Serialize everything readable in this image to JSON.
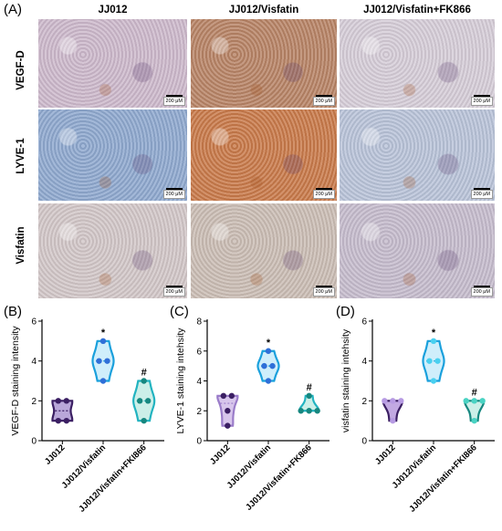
{
  "figure": {
    "panel_a_label": "(A)",
    "column_headers": [
      "JJ012",
      "JJ012/Visfatin",
      "JJ012/Visfatin+FK866"
    ],
    "row_headers": [
      "VEGF-D",
      "LYVE-1",
      "Visfatin"
    ],
    "scale_bar_label": "200 μM",
    "tile_colors": [
      [
        "#cdb9cc",
        "#b88466",
        "#d6cdd8"
      ],
      [
        "#8fa9cf",
        "#c97a4a",
        "#b9c3d9"
      ],
      [
        "#d2c7c8",
        "#cbbdb4",
        "#c6bccd"
      ]
    ]
  },
  "chart_data": [
    {
      "panel_label": "(B)",
      "type": "violin",
      "ylabel": "VEGF-D staining intensity",
      "ylim": [
        0,
        6
      ],
      "yticks": [
        0,
        2,
        4,
        6
      ],
      "categories": [
        "JJ012",
        "JJ012/Visfatin",
        "JJ012/Visfatin+FKI866"
      ],
      "series": [
        {
          "values": [
            1,
            1,
            2,
            2
          ],
          "fill": "#b9a7d9",
          "stroke": "#3b1f63",
          "dot": "#3b1f63"
        },
        {
          "values": [
            3,
            4,
            4,
            5
          ],
          "fill": "#cfeefb",
          "stroke": "#1aa0dc",
          "dot": "#2f6fd8"
        },
        {
          "values": [
            1,
            2,
            2,
            3
          ],
          "fill": "#ccefe8",
          "stroke": "#22b3c0",
          "dot": "#16877f"
        }
      ],
      "annotations": [
        "",
        "*",
        "#"
      ]
    },
    {
      "panel_label": "(C)",
      "type": "violin",
      "ylabel": "LYVE-1 staining intehsity",
      "ylim": [
        0,
        8
      ],
      "yticks": [
        0,
        2,
        4,
        6,
        8
      ],
      "categories": [
        "JJ012",
        "JJ012/Visfatin",
        "JJ012/Visfatin+FK866"
      ],
      "series": [
        {
          "values": [
            1,
            2,
            3,
            3
          ],
          "fill": "#d8c6ec",
          "stroke": "#9a7cc9",
          "dot": "#3b1f63"
        },
        {
          "values": [
            4,
            5,
            5,
            6
          ],
          "fill": "#cfeefb",
          "stroke": "#1aa0dc",
          "dot": "#2f6fd8"
        },
        {
          "values": [
            2,
            2,
            2,
            3
          ],
          "fill": "#ccefe8",
          "stroke": "#22b3c0",
          "dot": "#16877f"
        }
      ],
      "annotations": [
        "",
        "*",
        "#"
      ]
    },
    {
      "panel_label": "(D)",
      "type": "violin",
      "ylabel": "visfatin staining intehsity",
      "ylim": [
        0,
        6
      ],
      "yticks": [
        0,
        2,
        4,
        6
      ],
      "categories": [
        "JJ012",
        "JJ012/Visfatin",
        "JJ012/Visfatin+FKI866"
      ],
      "series": [
        {
          "values": [
            1,
            2,
            2,
            2
          ],
          "fill": "#c2a9e2",
          "stroke": "#3b1f63",
          "dot": "#b79be3"
        },
        {
          "values": [
            3,
            4,
            4,
            5
          ],
          "fill": "#cfeefb",
          "stroke": "#1aa0dc",
          "dot": "#49d0f0"
        },
        {
          "values": [
            1,
            2,
            2,
            2
          ],
          "fill": "#ccefe8",
          "stroke": "#16877f",
          "dot": "#4ad3c3"
        }
      ],
      "annotations": [
        "",
        "*",
        "#"
      ]
    }
  ]
}
